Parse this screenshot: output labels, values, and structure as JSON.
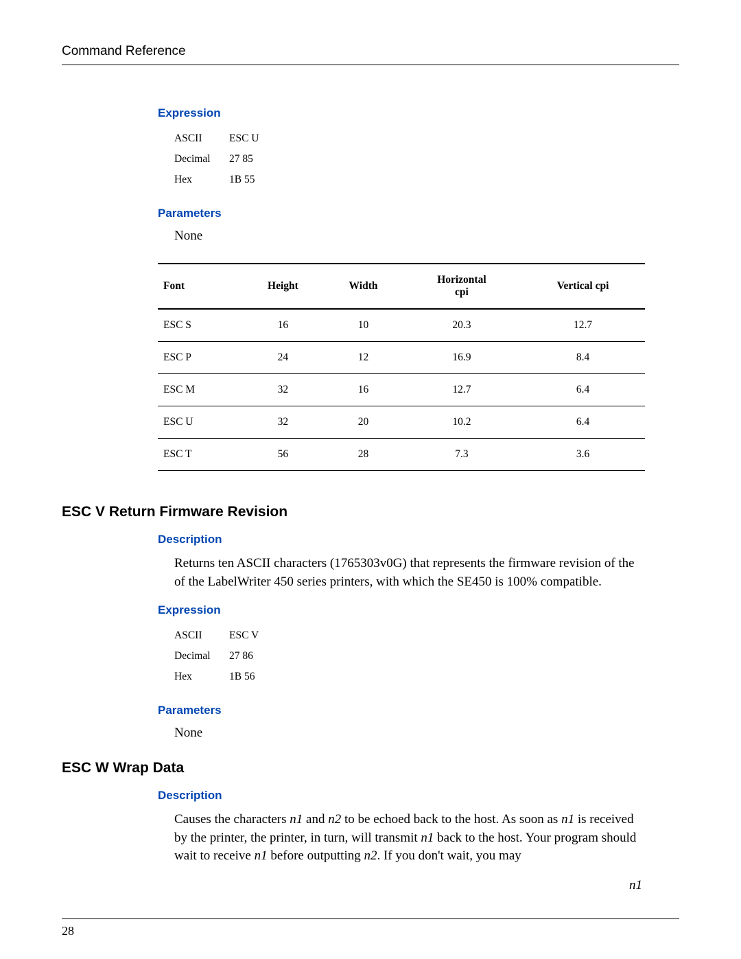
{
  "header": {
    "title": "Command Reference"
  },
  "expr1": {
    "heading": "Expression",
    "rows": [
      {
        "k": "ASCII",
        "v": "ESC U"
      },
      {
        "k": "Decimal",
        "v": "27 85"
      },
      {
        "k": "Hex",
        "v": "1B 55"
      }
    ]
  },
  "params1": {
    "heading": "Parameters",
    "value": "None"
  },
  "table1": {
    "columns": [
      "Font",
      "Height",
      "Width",
      "Horizontal cpi",
      "Vertical cpi"
    ],
    "col4_line1": "Horizontal",
    "col4_line2": "cpi",
    "rows": [
      [
        "ESC S",
        "16",
        "10",
        "20.3",
        "12.7"
      ],
      [
        "ESC P",
        "24",
        "12",
        "16.9",
        "8.4"
      ],
      [
        "ESC M",
        "32",
        "16",
        "12.7",
        "6.4"
      ],
      [
        "ESC U",
        "32",
        "20",
        "10.2",
        "6.4"
      ],
      [
        "ESC T",
        "56",
        "28",
        "7.3",
        "3.6"
      ]
    ]
  },
  "escv": {
    "title": "ESC V Return Firmware Revision",
    "desc_heading": "Description",
    "desc_text": "Returns ten ASCII characters (1765303v0G) that represents the firmware revision of the of the LabelWriter 450 series printers, with which the SE450 is 100% compatible.",
    "expr_heading": "Expression",
    "expr_rows": [
      {
        "k": "ASCII",
        "v": "ESC V"
      },
      {
        "k": "Decimal",
        "v": "27 86"
      },
      {
        "k": "Hex",
        "v": "1B 56"
      }
    ],
    "params_heading": "Parameters",
    "params_value": "None"
  },
  "escw": {
    "title": "ESC W Wrap Data",
    "desc_heading": "Description",
    "p1a": "Causes the characters ",
    "p1b": "n1",
    "p1c": " and ",
    "p1d": "n2",
    "p1e": " to be echoed back to the host. As soon as ",
    "p1f": "n1",
    "p1g": " is received by the printer, the printer, in turn, will transmit ",
    "p1h": "n1",
    "p1i": " back to the host. Your program should wait to receive ",
    "p1j": "n1",
    "p1k": " before outputting ",
    "p1l": "n2",
    "p1m": ". If you don't wait, you may",
    "trailing": "n1"
  },
  "page_number": "28",
  "colors": {
    "heading_blue": "#0046b2",
    "text": "#000000",
    "background": "#ffffff"
  },
  "typography": {
    "body_font": "Times New Roman",
    "heading_font": "Arial",
    "body_size_pt": 14,
    "heading_size_pt": 13,
    "main_heading_size_pt": 16,
    "table_size_pt": 12
  }
}
